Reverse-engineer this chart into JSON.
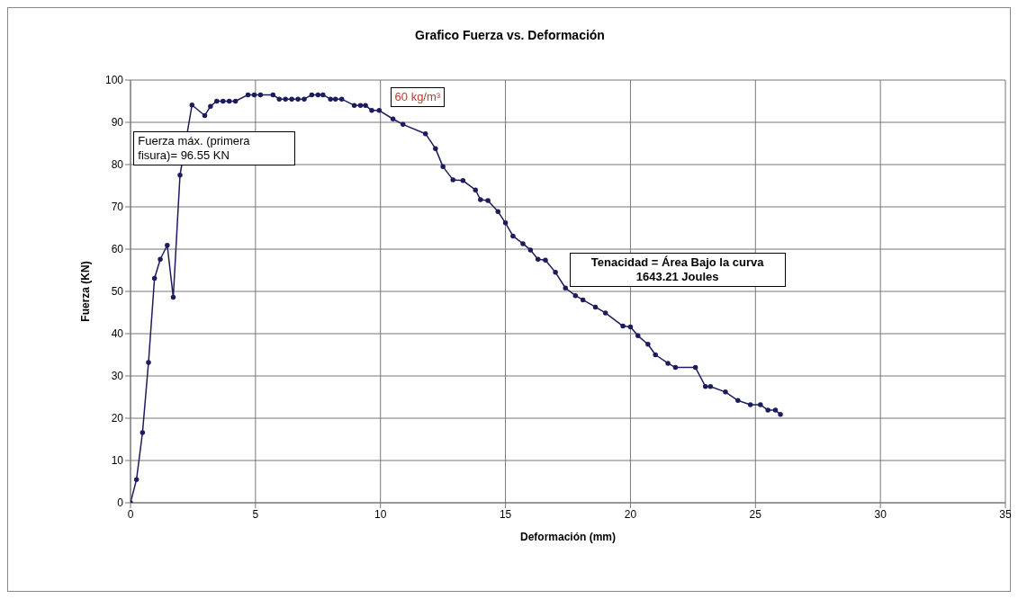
{
  "chart_data": {
    "type": "line",
    "title": "Grafico Fuerza vs. Deformación",
    "xlabel": "Deformación  (mm)",
    "ylabel": "Fuerza (KN)",
    "annotations": [
      "60 kg/m³",
      "Fuerza máx. (primera fisura)= 96.55 KN",
      "Tenacidad = Área Bajo la curva 1643.21 Joules"
    ],
    "xlim": [
      0,
      35
    ],
    "xticks": [
      0,
      5,
      10,
      15,
      20,
      25,
      30,
      35
    ],
    "ylim": [
      0,
      100
    ],
    "yticks": [
      0,
      10,
      20,
      30,
      40,
      50,
      60,
      70,
      80,
      90,
      100
    ],
    "grid": true,
    "marker": "circle",
    "line_style": "solid",
    "series": [
      {
        "color": "#1c1c5e",
        "x": [
          0,
          0.24,
          0.48,
          0.72,
          0.96,
          1.19,
          1.47,
          1.71,
          1.98,
          2.46,
          2.97,
          3.2,
          3.45,
          3.7,
          3.95,
          4.2,
          4.7,
          4.95,
          5.2,
          5.7,
          5.95,
          6.2,
          6.45,
          6.7,
          6.95,
          7.25,
          7.5,
          7.7,
          8.0,
          8.2,
          8.45,
          8.95,
          9.2,
          9.4,
          9.65,
          9.95,
          10.5,
          10.9,
          11.8,
          12.2,
          12.5,
          12.9,
          13.3,
          13.8,
          14.0,
          14.3,
          14.7,
          15.0,
          15.3,
          15.7,
          16.0,
          16.3,
          16.6,
          17.0,
          17.4,
          17.8,
          18.1,
          18.6,
          19.0,
          19.7,
          20.0,
          20.3,
          20.7,
          21.0,
          21.5,
          21.8,
          22.6,
          23.0,
          23.2,
          23.8,
          24.3,
          24.8,
          25.2,
          25.5,
          25.8,
          26.0
        ],
        "values": [
          0,
          5.5,
          16.6,
          33.2,
          53.1,
          57.6,
          60.9,
          48.6,
          77.5,
          94.1,
          91.6,
          93.8,
          95,
          95,
          95,
          95,
          96.5,
          96.5,
          96.5,
          96.5,
          95.5,
          95.5,
          95.5,
          95.5,
          95.5,
          96.5,
          96.5,
          96.5,
          95.5,
          95.5,
          95.5,
          94,
          94,
          94,
          92.8,
          92.8,
          90.8,
          89.5,
          87.3,
          83.8,
          79.5,
          76.4,
          76.2,
          74,
          71.7,
          71.5,
          68.9,
          66.2,
          63.1,
          61.3,
          59.8,
          57.6,
          57.4,
          54.5,
          50.8,
          49,
          48,
          46.3,
          44.9,
          41.8,
          41.6,
          39.5,
          37.5,
          35,
          33,
          32,
          32,
          27.5,
          27.5,
          26.2,
          24.2,
          23.2,
          23.2,
          21.9,
          21.9,
          20.9
        ]
      }
    ]
  }
}
